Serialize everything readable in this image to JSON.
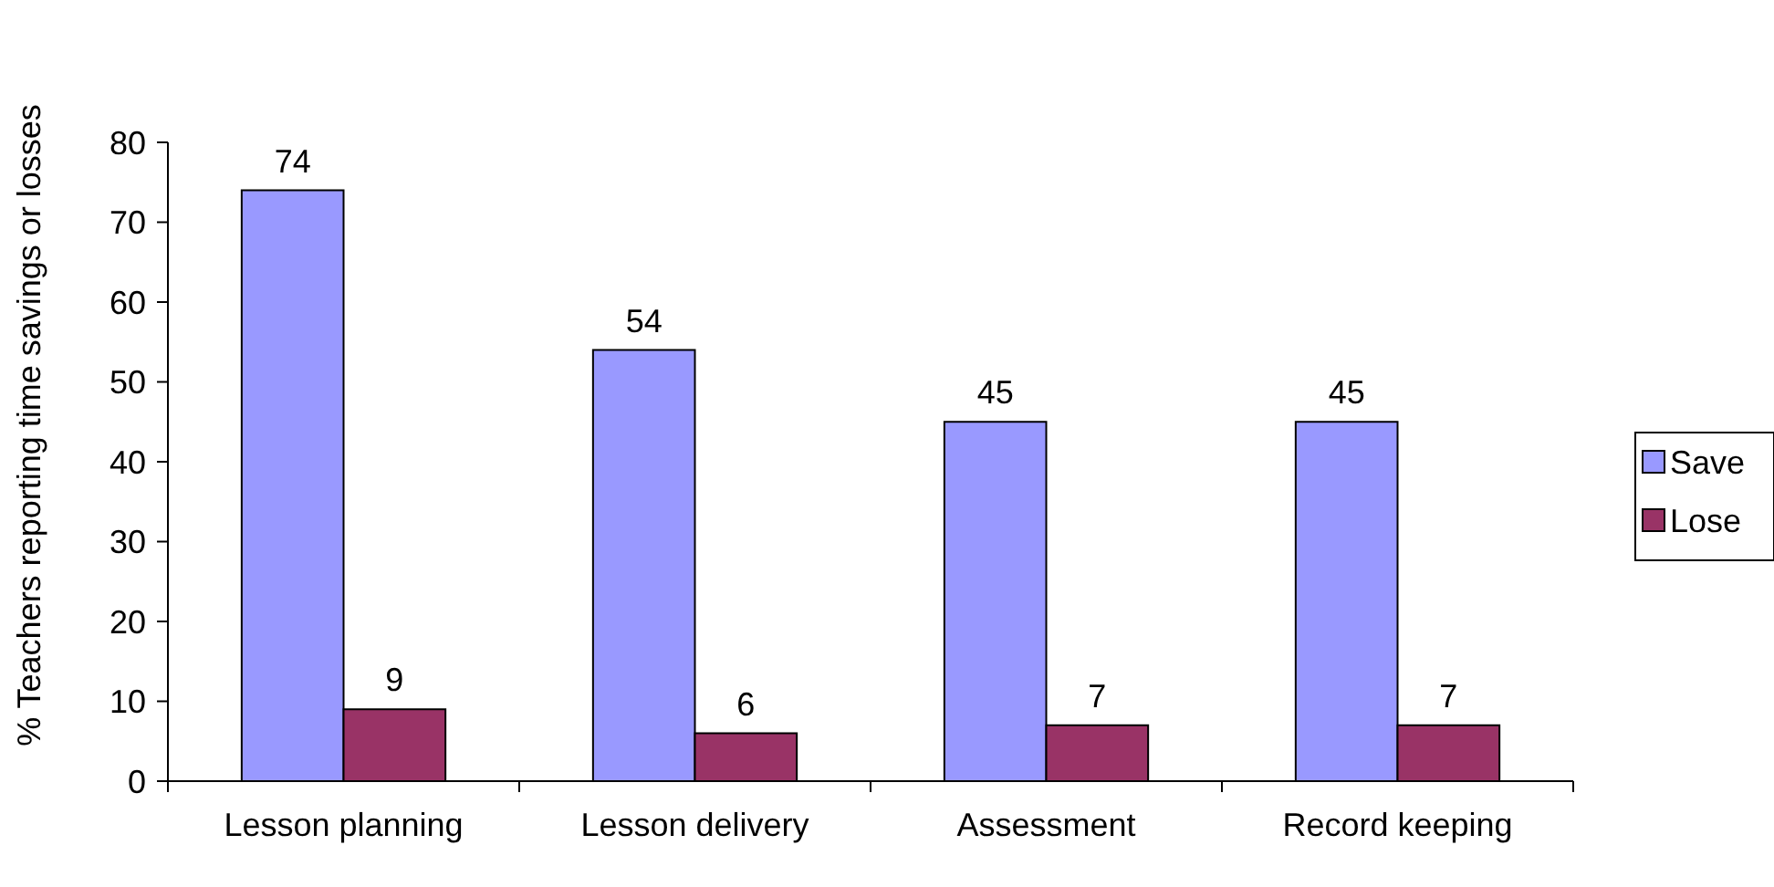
{
  "chart_data": {
    "type": "bar",
    "ylabel": "% Teachers reporting time savings or losses",
    "categories": [
      "Lesson planning",
      "Lesson delivery",
      "Assessment",
      "Record keeping"
    ],
    "series": [
      {
        "name": "Save",
        "color": "#9999ff",
        "values": [
          74,
          54,
          45,
          45
        ]
      },
      {
        "name": "Lose",
        "color": "#993366",
        "values": [
          9,
          6,
          7,
          7
        ]
      }
    ],
    "ylim": [
      0,
      80
    ],
    "yticks": [
      0,
      10,
      20,
      30,
      40,
      50,
      60,
      70,
      80
    ],
    "data_labels": true,
    "legend": "right"
  }
}
